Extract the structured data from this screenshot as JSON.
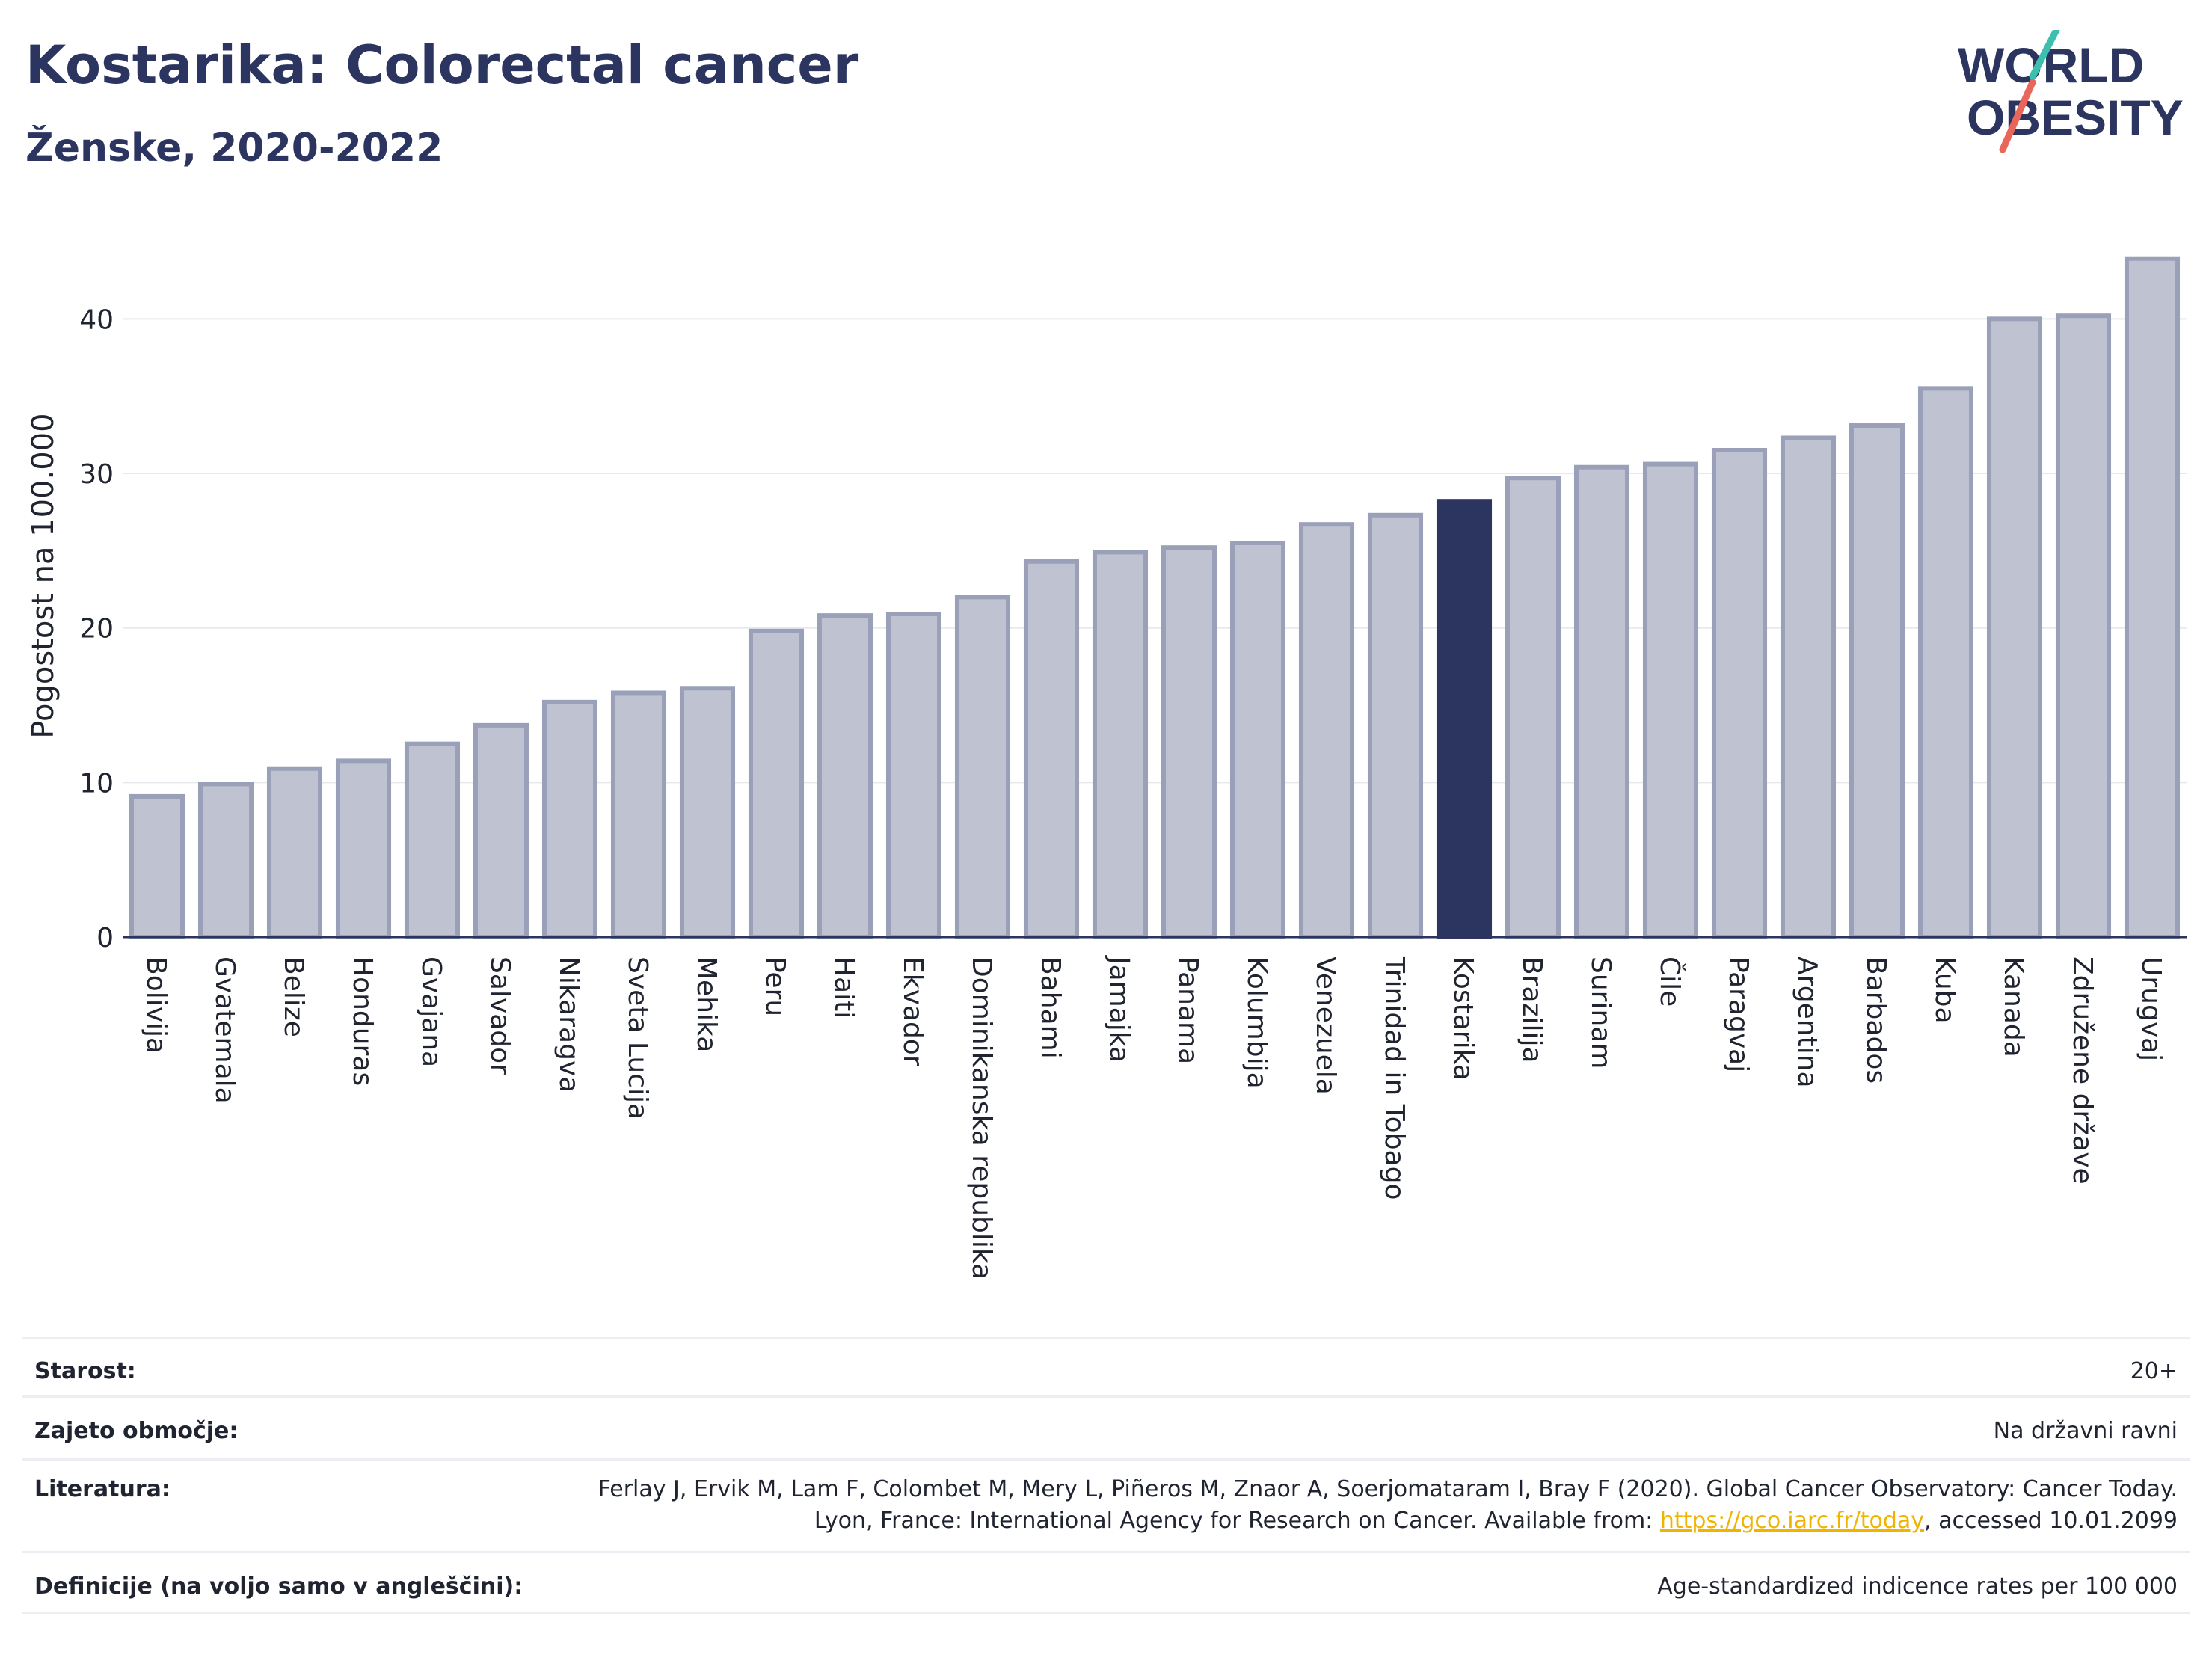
{
  "header": {
    "title": "Kostarika: Colorectal cancer",
    "subtitle": "Ženske, 2020-2022"
  },
  "logo": {
    "line1": "WORLD",
    "line2": "OBESITY",
    "accent_teal": "#3cbfae",
    "accent_red": "#e8665a",
    "text_color": "#2b3560"
  },
  "colors": {
    "bar": "#bfc3d1",
    "bar_stroke": "#9aa0b8",
    "highlight": "#2b3560",
    "grid": "#e6e8ee",
    "axis": "#2b3560"
  },
  "chart_data": {
    "type": "bar",
    "ylabel": "Pogostost na 100.000",
    "ylim": [
      0,
      45
    ],
    "yticks": [
      0,
      10,
      20,
      30,
      40
    ],
    "grid": true,
    "highlight": "Kostarika",
    "categories": [
      "Bolivija",
      "Gvatemala",
      "Belize",
      "Honduras",
      "Gvajana",
      "Salvador",
      "Nikaragva",
      "Sveta Lucija",
      "Mehika",
      "Peru",
      "Haiti",
      "Ekvador",
      "Dominikanska republika",
      "Bahami",
      "Jamajka",
      "Panama",
      "Kolumbija",
      "Venezuela",
      "Trinidad in Tobago",
      "Kostarika",
      "Brazilija",
      "Surinam",
      "Čile",
      "Paragvaj",
      "Argentina",
      "Barbados",
      "Kuba",
      "Kanada",
      "Združene države",
      "Urugvaj"
    ],
    "values": [
      9.1,
      9.9,
      10.9,
      11.4,
      12.5,
      13.7,
      15.2,
      15.8,
      16.1,
      19.8,
      20.8,
      20.9,
      22.0,
      24.3,
      24.9,
      25.2,
      25.5,
      26.7,
      27.3,
      28.2,
      29.7,
      30.4,
      30.6,
      31.5,
      32.3,
      33.1,
      35.5,
      40.0,
      40.2,
      43.9
    ]
  },
  "info": {
    "age_label": "Starost:",
    "age_value": "20+",
    "coverage_label": "Zajeto območje:",
    "coverage_value": "Na državni ravni",
    "lit_label": "Literatura:",
    "lit_text1": "Ferlay J, Ervik M, Lam F, Colombet M, Mery L, Piñeros M, Znaor A, Soerjomataram I, Bray F (2020). Global Cancer Observatory: Cancer Today. Lyon, France: International Agency for Research on Cancer. Available from: ",
    "lit_link": "https://gco.iarc.fr/today",
    "lit_text2": ", accessed 10.01.2099",
    "def_label": "Definicije (na voljo samo v angleščini):",
    "def_value": "Age-standardized indicence rates per 100 000"
  }
}
